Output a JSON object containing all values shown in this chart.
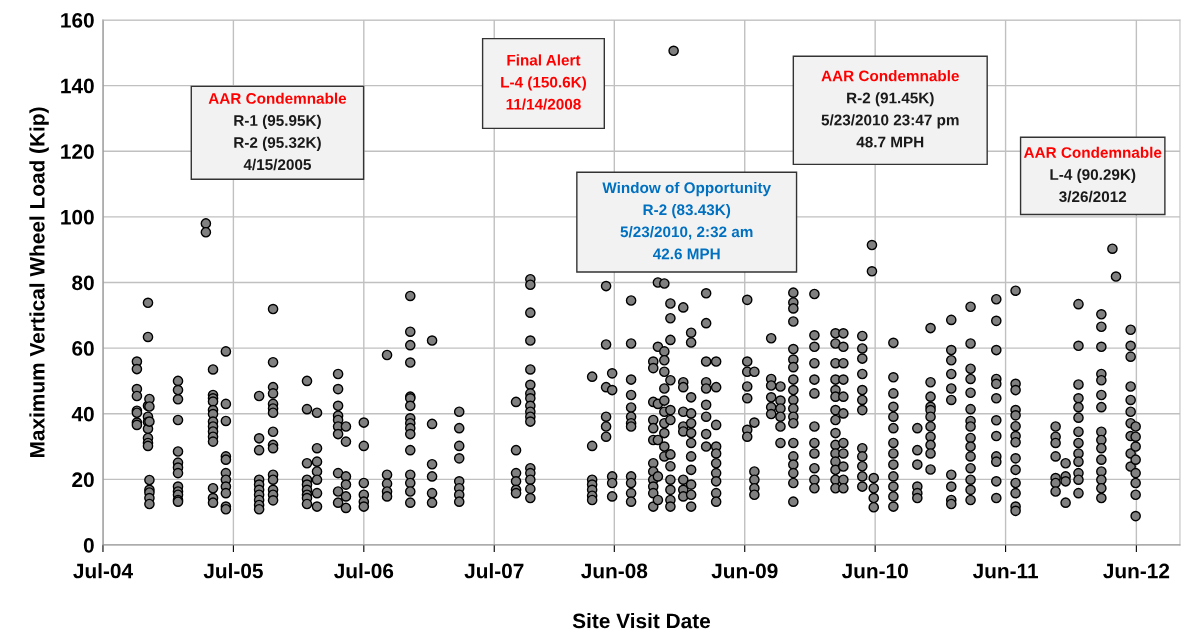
{
  "chart_data": {
    "type": "scatter",
    "xlabel": "Site Visit Date",
    "ylabel": "Maximum Vertical Wheel Load (Kip)",
    "xlim": [
      "2004-07-01",
      "2012-10-01"
    ],
    "xticks": [
      {
        "value": "2004-07-01",
        "label": "Jul-04"
      },
      {
        "value": "2005-07-01",
        "label": "Jul-05"
      },
      {
        "value": "2006-07-01",
        "label": "Jul-06"
      },
      {
        "value": "2007-07-01",
        "label": "Jul-07"
      },
      {
        "value": "2008-06-01",
        "label": "Jun-08"
      },
      {
        "value": "2009-06-01",
        "label": "Jun-09"
      },
      {
        "value": "2010-06-01",
        "label": "Jun-10"
      },
      {
        "value": "2011-06-01",
        "label": "Jun-11"
      },
      {
        "value": "2012-06-01",
        "label": "Jun-12"
      }
    ],
    "ylim": [
      0,
      160
    ],
    "yticks": [
      0,
      20,
      40,
      60,
      80,
      100,
      120,
      140,
      160
    ],
    "grid": true,
    "marker": "circle",
    "annotations": [
      "AAR Condemnable\nR-1 (95.95K)\nR-2 (95.32K)\n4/15/2005",
      "Final Alert\nL-4 (150.6K)\n11/14/2008",
      "Window of Opportunity\nR-2 (83.43K)\n5/23/2010, 2:32 am\n42.6 MPH",
      "AAR Condemnable\nR-2 (91.45K)\n5/23/2010 23:47 pm\n48.7 MPH",
      "AAR Condemnable\nL-4 (90.29K)\n3/26/2012"
    ],
    "series": [
      {
        "color": "#808080",
        "x": [
          "2004-10-04",
          "2004-10-04",
          "2004-10-04",
          "2004-10-04",
          "2004-10-04",
          "2004-10-04",
          "2004-10-04",
          "2004-10-04",
          "2004-11-04",
          "2004-11-04",
          "2004-11-04",
          "2004-11-04",
          "2004-11-04",
          "2004-11-04",
          "2004-11-04",
          "2004-11-04",
          "2004-11-04",
          "2004-11-08",
          "2004-11-08",
          "2004-11-08",
          "2004-11-08",
          "2004-11-08",
          "2004-11-08",
          "2004-11-08",
          "2004-11-08",
          "2005-01-27",
          "2005-01-27",
          "2005-01-27",
          "2005-01-27",
          "2005-01-27",
          "2005-01-27",
          "2005-01-27",
          "2005-01-27",
          "2005-01-27",
          "2005-01-27",
          "2005-01-27",
          "2005-01-27",
          "2005-01-27",
          "2005-04-15",
          "2005-04-15",
          "2005-05-05",
          "2005-05-05",
          "2005-05-05",
          "2005-05-05",
          "2005-05-05",
          "2005-05-05",
          "2005-05-05",
          "2005-05-05",
          "2005-05-05",
          "2005-05-05",
          "2005-05-05",
          "2005-05-05",
          "2005-05-05",
          "2005-05-05",
          "2005-06-10",
          "2005-06-10",
          "2005-06-10",
          "2005-06-10",
          "2005-06-10",
          "2005-06-10",
          "2005-06-10",
          "2005-06-10",
          "2005-06-10",
          "2005-06-10",
          "2005-06-10",
          "2005-09-11",
          "2005-09-11",
          "2005-09-11",
          "2005-09-11",
          "2005-09-11",
          "2005-09-11",
          "2005-09-11",
          "2005-09-11",
          "2005-09-11",
          "2005-09-11",
          "2005-10-20",
          "2005-10-20",
          "2005-10-20",
          "2005-10-20",
          "2005-10-20",
          "2005-10-20",
          "2005-10-20",
          "2005-10-20",
          "2005-10-20",
          "2005-10-20",
          "2005-10-20",
          "2005-10-20",
          "2005-10-20",
          "2005-10-20",
          "2005-10-20",
          "2006-01-23",
          "2006-01-23",
          "2006-01-23",
          "2006-01-23",
          "2006-01-23",
          "2006-01-23",
          "2006-01-23",
          "2006-01-23",
          "2006-01-23",
          "2006-02-20",
          "2006-02-20",
          "2006-02-20",
          "2006-02-20",
          "2006-02-20",
          "2006-02-20",
          "2006-02-20",
          "2006-04-20",
          "2006-04-20",
          "2006-04-20",
          "2006-04-20",
          "2006-04-20",
          "2006-04-20",
          "2006-04-20",
          "2006-04-20",
          "2006-04-20",
          "2006-04-20",
          "2006-05-12",
          "2006-05-12",
          "2006-05-12",
          "2006-05-12",
          "2006-05-12",
          "2006-05-12",
          "2006-07-01",
          "2006-07-01",
          "2006-07-01",
          "2006-07-01",
          "2006-07-01",
          "2006-07-01",
          "2006-09-04",
          "2006-09-04",
          "2006-09-04",
          "2006-09-04",
          "2006-09-04",
          "2006-11-08",
          "2006-11-08",
          "2006-11-08",
          "2006-11-08",
          "2006-11-08",
          "2006-11-08",
          "2006-11-08",
          "2006-11-08",
          "2006-11-08",
          "2006-11-08",
          "2006-11-08",
          "2006-11-08",
          "2006-11-08",
          "2006-11-08",
          "2006-11-08",
          "2006-11-08",
          "2007-01-08",
          "2007-01-08",
          "2007-01-08",
          "2007-01-08",
          "2007-01-08",
          "2007-01-08",
          "2007-03-25",
          "2007-03-25",
          "2007-03-25",
          "2007-03-25",
          "2007-03-25",
          "2007-03-25",
          "2007-03-25",
          "2007-03-25",
          "2007-08-31",
          "2007-08-31",
          "2007-08-31",
          "2007-08-31",
          "2007-08-31",
          "2007-08-31",
          "2007-10-10",
          "2007-10-10",
          "2007-10-10",
          "2007-10-10",
          "2007-10-10",
          "2007-10-10",
          "2007-10-10",
          "2007-10-10",
          "2007-10-10",
          "2007-10-10",
          "2007-10-10",
          "2007-10-10",
          "2007-10-10",
          "2007-10-10",
          "2007-10-10",
          "2007-10-10",
          "2007-10-10",
          "2008-03-31",
          "2008-03-31",
          "2008-03-31",
          "2008-03-31",
          "2008-03-31",
          "2008-03-31",
          "2008-03-31",
          "2008-05-09",
          "2008-05-09",
          "2008-05-09",
          "2008-05-09",
          "2008-05-09",
          "2008-05-09",
          "2008-05-26",
          "2008-05-26",
          "2008-05-26",
          "2008-05-26",
          "2008-05-26",
          "2008-07-18",
          "2008-07-18",
          "2008-07-18",
          "2008-07-18",
          "2008-07-18",
          "2008-07-18",
          "2008-07-18",
          "2008-07-18",
          "2008-07-18",
          "2008-07-18",
          "2008-07-18",
          "2008-07-18",
          "2008-09-18",
          "2008-09-18",
          "2008-09-18",
          "2008-09-18",
          "2008-09-18",
          "2008-09-18",
          "2008-09-18",
          "2008-09-18",
          "2008-09-18",
          "2008-09-18",
          "2008-09-18",
          "2008-09-18",
          "2008-10-01",
          "2008-10-01",
          "2008-10-01",
          "2008-10-01",
          "2008-10-01",
          "2008-10-01",
          "2008-10-19",
          "2008-10-19",
          "2008-10-19",
          "2008-10-19",
          "2008-10-19",
          "2008-10-19",
          "2008-10-19",
          "2008-10-19",
          "2008-10-19",
          "2008-10-19",
          "2008-10-19",
          "2008-11-14",
          "2008-11-05",
          "2008-11-05",
          "2008-11-05",
          "2008-11-05",
          "2008-11-05",
          "2008-11-05",
          "2008-11-05",
          "2008-11-05",
          "2008-11-05",
          "2008-11-05",
          "2008-11-05",
          "2008-11-05",
          "2008-12-11",
          "2008-12-11",
          "2008-12-11",
          "2008-12-11",
          "2008-12-11",
          "2008-12-11",
          "2008-12-11",
          "2008-12-11",
          "2008-12-11",
          "2009-01-02",
          "2009-01-02",
          "2009-01-02",
          "2009-01-02",
          "2009-01-02",
          "2009-01-02",
          "2009-01-02",
          "2009-01-02",
          "2009-01-02",
          "2009-01-02",
          "2009-01-02",
          "2009-01-02",
          "2009-02-13",
          "2009-02-13",
          "2009-02-13",
          "2009-02-13",
          "2009-02-13",
          "2009-02-13",
          "2009-02-13",
          "2009-02-13",
          "2009-02-13",
          "2009-03-13",
          "2009-03-13",
          "2009-03-13",
          "2009-03-13",
          "2009-03-13",
          "2009-03-13",
          "2009-03-13",
          "2009-03-13",
          "2009-03-13",
          "2009-03-13",
          "2009-06-08",
          "2009-06-08",
          "2009-06-08",
          "2009-06-08",
          "2009-06-08",
          "2009-06-08",
          "2009-06-08",
          "2009-06-28",
          "2009-06-28",
          "2009-06-28",
          "2009-06-28",
          "2009-06-28",
          "2009-06-28",
          "2009-08-14",
          "2009-08-14",
          "2009-08-14",
          "2009-08-14",
          "2009-08-14",
          "2009-08-14",
          "2009-09-09",
          "2009-09-09",
          "2009-09-09",
          "2009-09-09",
          "2009-09-09",
          "2009-09-09",
          "2009-10-15",
          "2009-10-15",
          "2009-10-15",
          "2009-10-15",
          "2009-10-15",
          "2009-10-15",
          "2009-10-15",
          "2009-10-15",
          "2009-10-15",
          "2009-10-15",
          "2009-10-15",
          "2009-10-15",
          "2009-10-15",
          "2009-10-15",
          "2009-10-15",
          "2009-10-15",
          "2009-10-15",
          "2009-10-15",
          "2009-10-15",
          "2009-12-13",
          "2009-12-13",
          "2009-12-13",
          "2009-12-13",
          "2009-12-13",
          "2009-12-13",
          "2009-12-13",
          "2009-12-13",
          "2009-12-13",
          "2009-12-13",
          "2009-12-13",
          "2009-12-13",
          "2010-02-10",
          "2010-02-10",
          "2010-02-10",
          "2010-02-10",
          "2010-02-10",
          "2010-02-10",
          "2010-02-10",
          "2010-02-10",
          "2010-02-10",
          "2010-02-10",
          "2010-02-10",
          "2010-02-10",
          "2010-02-10",
          "2010-02-10",
          "2010-02-10",
          "2010-03-04",
          "2010-03-04",
          "2010-03-04",
          "2010-03-04",
          "2010-03-04",
          "2010-03-04",
          "2010-03-04",
          "2010-03-04",
          "2010-03-04",
          "2010-03-04",
          "2010-03-04",
          "2010-04-26",
          "2010-04-26",
          "2010-04-26",
          "2010-04-26",
          "2010-04-26",
          "2010-04-26",
          "2010-04-26",
          "2010-04-26",
          "2010-04-26",
          "2010-04-26",
          "2010-04-26",
          "2010-04-26",
          "2010-05-23",
          "2010-05-23",
          "2010-05-28",
          "2010-05-28",
          "2010-05-28",
          "2010-05-28",
          "2010-07-22",
          "2010-07-22",
          "2010-07-22",
          "2010-07-22",
          "2010-07-22",
          "2010-07-22",
          "2010-07-22",
          "2010-07-22",
          "2010-07-22",
          "2010-07-22",
          "2010-07-22",
          "2010-07-22",
          "2010-07-22",
          "2010-09-27",
          "2010-09-27",
          "2010-09-27",
          "2010-09-27",
          "2010-09-27",
          "2010-09-27",
          "2010-11-03",
          "2010-11-03",
          "2010-11-03",
          "2010-11-03",
          "2010-11-03",
          "2010-11-03",
          "2010-11-03",
          "2010-11-03",
          "2010-11-03",
          "2010-11-03",
          "2010-11-03",
          "2010-12-31",
          "2010-12-31",
          "2010-12-31",
          "2010-12-31",
          "2010-12-31",
          "2010-12-31",
          "2010-12-31",
          "2010-12-31",
          "2010-12-31",
          "2010-12-31",
          "2011-02-23",
          "2011-02-23",
          "2011-02-23",
          "2011-02-23",
          "2011-02-23",
          "2011-02-23",
          "2011-02-23",
          "2011-02-23",
          "2011-02-23",
          "2011-02-23",
          "2011-02-23",
          "2011-02-23",
          "2011-02-23",
          "2011-02-23",
          "2011-02-23",
          "2011-05-06",
          "2011-05-06",
          "2011-05-06",
          "2011-05-06",
          "2011-05-06",
          "2011-05-06",
          "2011-05-06",
          "2011-05-06",
          "2011-05-06",
          "2011-05-06",
          "2011-05-06",
          "2011-05-06",
          "2011-06-29",
          "2011-06-29",
          "2011-06-29",
          "2011-06-29",
          "2011-06-29",
          "2011-06-29",
          "2011-06-29",
          "2011-06-29",
          "2011-06-29",
          "2011-06-29",
          "2011-06-29",
          "2011-06-29",
          "2011-06-29",
          "2011-06-29",
          "2011-10-19",
          "2011-10-19",
          "2011-10-19",
          "2011-10-19",
          "2011-10-19",
          "2011-10-19",
          "2011-10-19",
          "2011-11-16",
          "2011-11-16",
          "2011-11-16",
          "2011-11-16",
          "2011-12-22",
          "2011-12-22",
          "2011-12-22",
          "2011-12-22",
          "2011-12-22",
          "2011-12-22",
          "2011-12-22",
          "2011-12-22",
          "2011-12-22",
          "2011-12-22",
          "2011-12-22",
          "2011-12-22",
          "2011-12-22",
          "2012-02-24",
          "2012-02-24",
          "2012-02-24",
          "2012-02-24",
          "2012-02-24",
          "2012-02-24",
          "2012-02-24",
          "2012-02-24",
          "2012-02-24",
          "2012-02-24",
          "2012-02-24",
          "2012-02-24",
          "2012-02-24",
          "2012-02-24",
          "2012-02-24",
          "2012-03-26",
          "2012-04-05",
          "2012-05-16",
          "2012-05-16",
          "2012-05-16",
          "2012-05-16",
          "2012-05-16",
          "2012-05-16",
          "2012-05-16",
          "2012-05-16",
          "2012-05-16",
          "2012-05-16",
          "2012-05-30",
          "2012-05-30",
          "2012-05-30",
          "2012-05-30",
          "2012-05-30",
          "2012-05-30",
          "2012-05-30",
          "2012-05-30"
        ],
        "values": [
          55.9,
          53.6,
          47.5,
          45.4,
          40.9,
          40.3,
          37.3,
          36.6,
          73.8,
          63.4,
          42.4,
          39.1,
          37.5,
          35.4,
          32.6,
          31.1,
          30.2,
          44.5,
          42.2,
          37.6,
          19.8,
          16.8,
          16,
          14.3,
          12.5,
          50,
          47.2,
          44.4,
          38.1,
          28.5,
          25.1,
          23.6,
          21.9,
          17.8,
          16.3,
          15.3,
          13.7,
          13.2,
          98,
          95.3,
          53.5,
          45.7,
          44.7,
          43.7,
          41.1,
          39.9,
          37.6,
          36.1,
          34.6,
          33,
          31.5,
          17.3,
          14.3,
          12.9,
          59,
          37.8,
          43,
          27,
          26,
          21.9,
          19.9,
          17.8,
          15.8,
          11.7,
          10.9,
          45.4,
          32.5,
          28.9,
          19.9,
          18.4,
          16.8,
          15.3,
          13.7,
          12.2,
          10.9,
          71.9,
          55.7,
          48.1,
          46.2,
          43,
          41.6,
          40.3,
          34.5,
          30.5,
          29.5,
          21.4,
          19.9,
          16.8,
          15.3,
          13.6,
          50,
          41.4,
          24.9,
          19.9,
          18.4,
          16.8,
          15.3,
          14.3,
          12.5,
          40.3,
          29.5,
          25.4,
          22.4,
          19.9,
          15.8,
          11.7,
          52.1,
          47.5,
          42.4,
          39.4,
          38.1,
          36.1,
          33.8,
          21.9,
          16.3,
          12.9,
          36.1,
          31.5,
          20.9,
          18.4,
          14.8,
          11.3,
          37.3,
          30.2,
          18.9,
          15.3,
          13.2,
          11.7,
          57.9,
          21.4,
          18.7,
          16.3,
          14.8,
          75.9,
          65,
          60.9,
          55.6,
          45.2,
          44.7,
          42.4,
          38.6,
          37.1,
          35.6,
          33.8,
          28.9,
          21.4,
          18.9,
          16.3,
          12.9,
          62.3,
          36.9,
          24.6,
          20.9,
          15.8,
          12.9,
          40.6,
          35.6,
          30.2,
          26.4,
          19.4,
          17.3,
          15.3,
          13.2,
          43.6,
          28.9,
          21.9,
          19.4,
          16.8,
          15.8,
          81,
          79.3,
          70.8,
          62.3,
          53.5,
          48.8,
          46.2,
          44.7,
          42.4,
          40.6,
          39.1,
          37.6,
          23.4,
          21.9,
          19.9,
          17.1,
          14.3,
          51.3,
          30.2,
          19.9,
          18.4,
          16.8,
          15,
          13.7,
          78.9,
          61.1,
          48.1,
          39.1,
          36.1,
          33,
          52.3,
          47.2,
          20.9,
          18.9,
          14.8,
          74.5,
          61.4,
          50.4,
          45.7,
          41.9,
          39.1,
          37.1,
          36.1,
          20.9,
          18.9,
          15.8,
          13.2,
          55.9,
          53.9,
          43.6,
          38.1,
          35.6,
          32,
          24.9,
          22.4,
          19.9,
          17.8,
          15.8,
          11.7,
          80,
          60.4,
          43,
          32,
          20.9,
          13.7,
          79.7,
          59,
          56.3,
          52.8,
          47.7,
          44,
          40.6,
          37.1,
          34.1,
          30,
          27,
          150.6,
          73.6,
          69.1,
          62.5,
          50.2,
          41.1,
          38.1,
          27.6,
          24,
          19.9,
          16.8,
          13.7,
          11.7,
          72.4,
          49.6,
          48.1,
          40.6,
          36.1,
          34.6,
          19.9,
          16.8,
          14.8,
          64.7,
          61.7,
          45,
          40.1,
          37.1,
          34.1,
          31.1,
          27,
          22.9,
          18.4,
          15.3,
          11.7,
          76.7,
          67.6,
          55.9,
          49.6,
          47.7,
          42.7,
          39.1,
          33.8,
          30,
          55.9,
          48.1,
          36.6,
          30,
          27.9,
          24.9,
          21.9,
          19.4,
          15.8,
          13.2,
          74.7,
          55.9,
          52.8,
          48.3,
          44.7,
          35.1,
          33,
          52.8,
          37.3,
          22.4,
          19.9,
          17.3,
          15.3,
          63,
          50.6,
          48.6,
          45,
          42,
          39.9,
          48.3,
          44,
          41.6,
          39.1,
          36.1,
          31.1,
          76.9,
          73.9,
          72.1,
          68.1,
          59.7,
          56.5,
          54.2,
          50.4,
          47.2,
          44.2,
          41.6,
          39.1,
          37.1,
          31.1,
          27,
          24.5,
          21.9,
          18.9,
          13.2,
          76.5,
          63.9,
          60.4,
          55.4,
          50.4,
          46.2,
          36.1,
          31.1,
          27.9,
          23.4,
          19.9,
          17.3,
          64.5,
          61.4,
          55.4,
          50.4,
          47.2,
          45.2,
          41.1,
          38.1,
          34.1,
          30.5,
          27.9,
          25.4,
          22.9,
          19.9,
          17.3,
          64.5,
          60.4,
          55.4,
          50.4,
          45.2,
          40.1,
          31.1,
          27.9,
          23.9,
          19.9,
          17.3,
          63.7,
          59.9,
          56.8,
          52.1,
          47.2,
          44.2,
          41.1,
          29.5,
          27,
          24,
          20.9,
          17.8,
          91.4,
          83.4,
          20.4,
          17.3,
          14.3,
          11.5,
          61.6,
          51.1,
          46.2,
          42.1,
          39.1,
          35.6,
          31.1,
          27.9,
          24.5,
          20.9,
          17.8,
          14.8,
          11.7,
          35.6,
          28.9,
          24.5,
          17.8,
          15.8,
          14.3,
          66.1,
          49.6,
          45.2,
          42.1,
          41.1,
          39.1,
          36.1,
          33,
          30.5,
          27.9,
          23,
          68.6,
          59.4,
          56.3,
          52.1,
          47.7,
          44.2,
          21.4,
          17.8,
          13.7,
          12.5,
          72.6,
          61.4,
          53.7,
          50.6,
          46.4,
          41.4,
          37.8,
          36.1,
          32.6,
          30,
          27,
          23.4,
          19.9,
          16.8,
          13.7,
          74.9,
          68.3,
          59.4,
          50.6,
          49.1,
          44.7,
          38,
          33.2,
          27,
          25.4,
          19.4,
          14.3,
          77.5,
          49.1,
          47.2,
          41.1,
          39.5,
          36.2,
          33.2,
          31.3,
          26.4,
          22.9,
          18.9,
          15.8,
          11.7,
          10.4,
          36.1,
          33,
          31.1,
          27,
          20.4,
          18.9,
          16.3,
          24.9,
          20.9,
          19.4,
          12.9,
          73.4,
          60.7,
          48.9,
          44.7,
          42,
          38.8,
          34.5,
          31.1,
          27.9,
          25.4,
          21.9,
          19.9,
          15.8,
          70.3,
          66.5,
          60.4,
          52.1,
          50.2,
          45.7,
          42,
          34.5,
          32,
          29.5,
          26,
          22.4,
          19.9,
          17.3,
          14.3,
          90.3,
          81.8,
          65.6,
          60.7,
          57.4,
          48.3,
          44.2,
          40.6,
          37.1,
          33.2,
          27.9,
          23.9,
          36.1,
          33,
          30,
          26,
          21.9,
          18.9,
          15.3,
          8.8
        ]
      }
    ]
  }
}
